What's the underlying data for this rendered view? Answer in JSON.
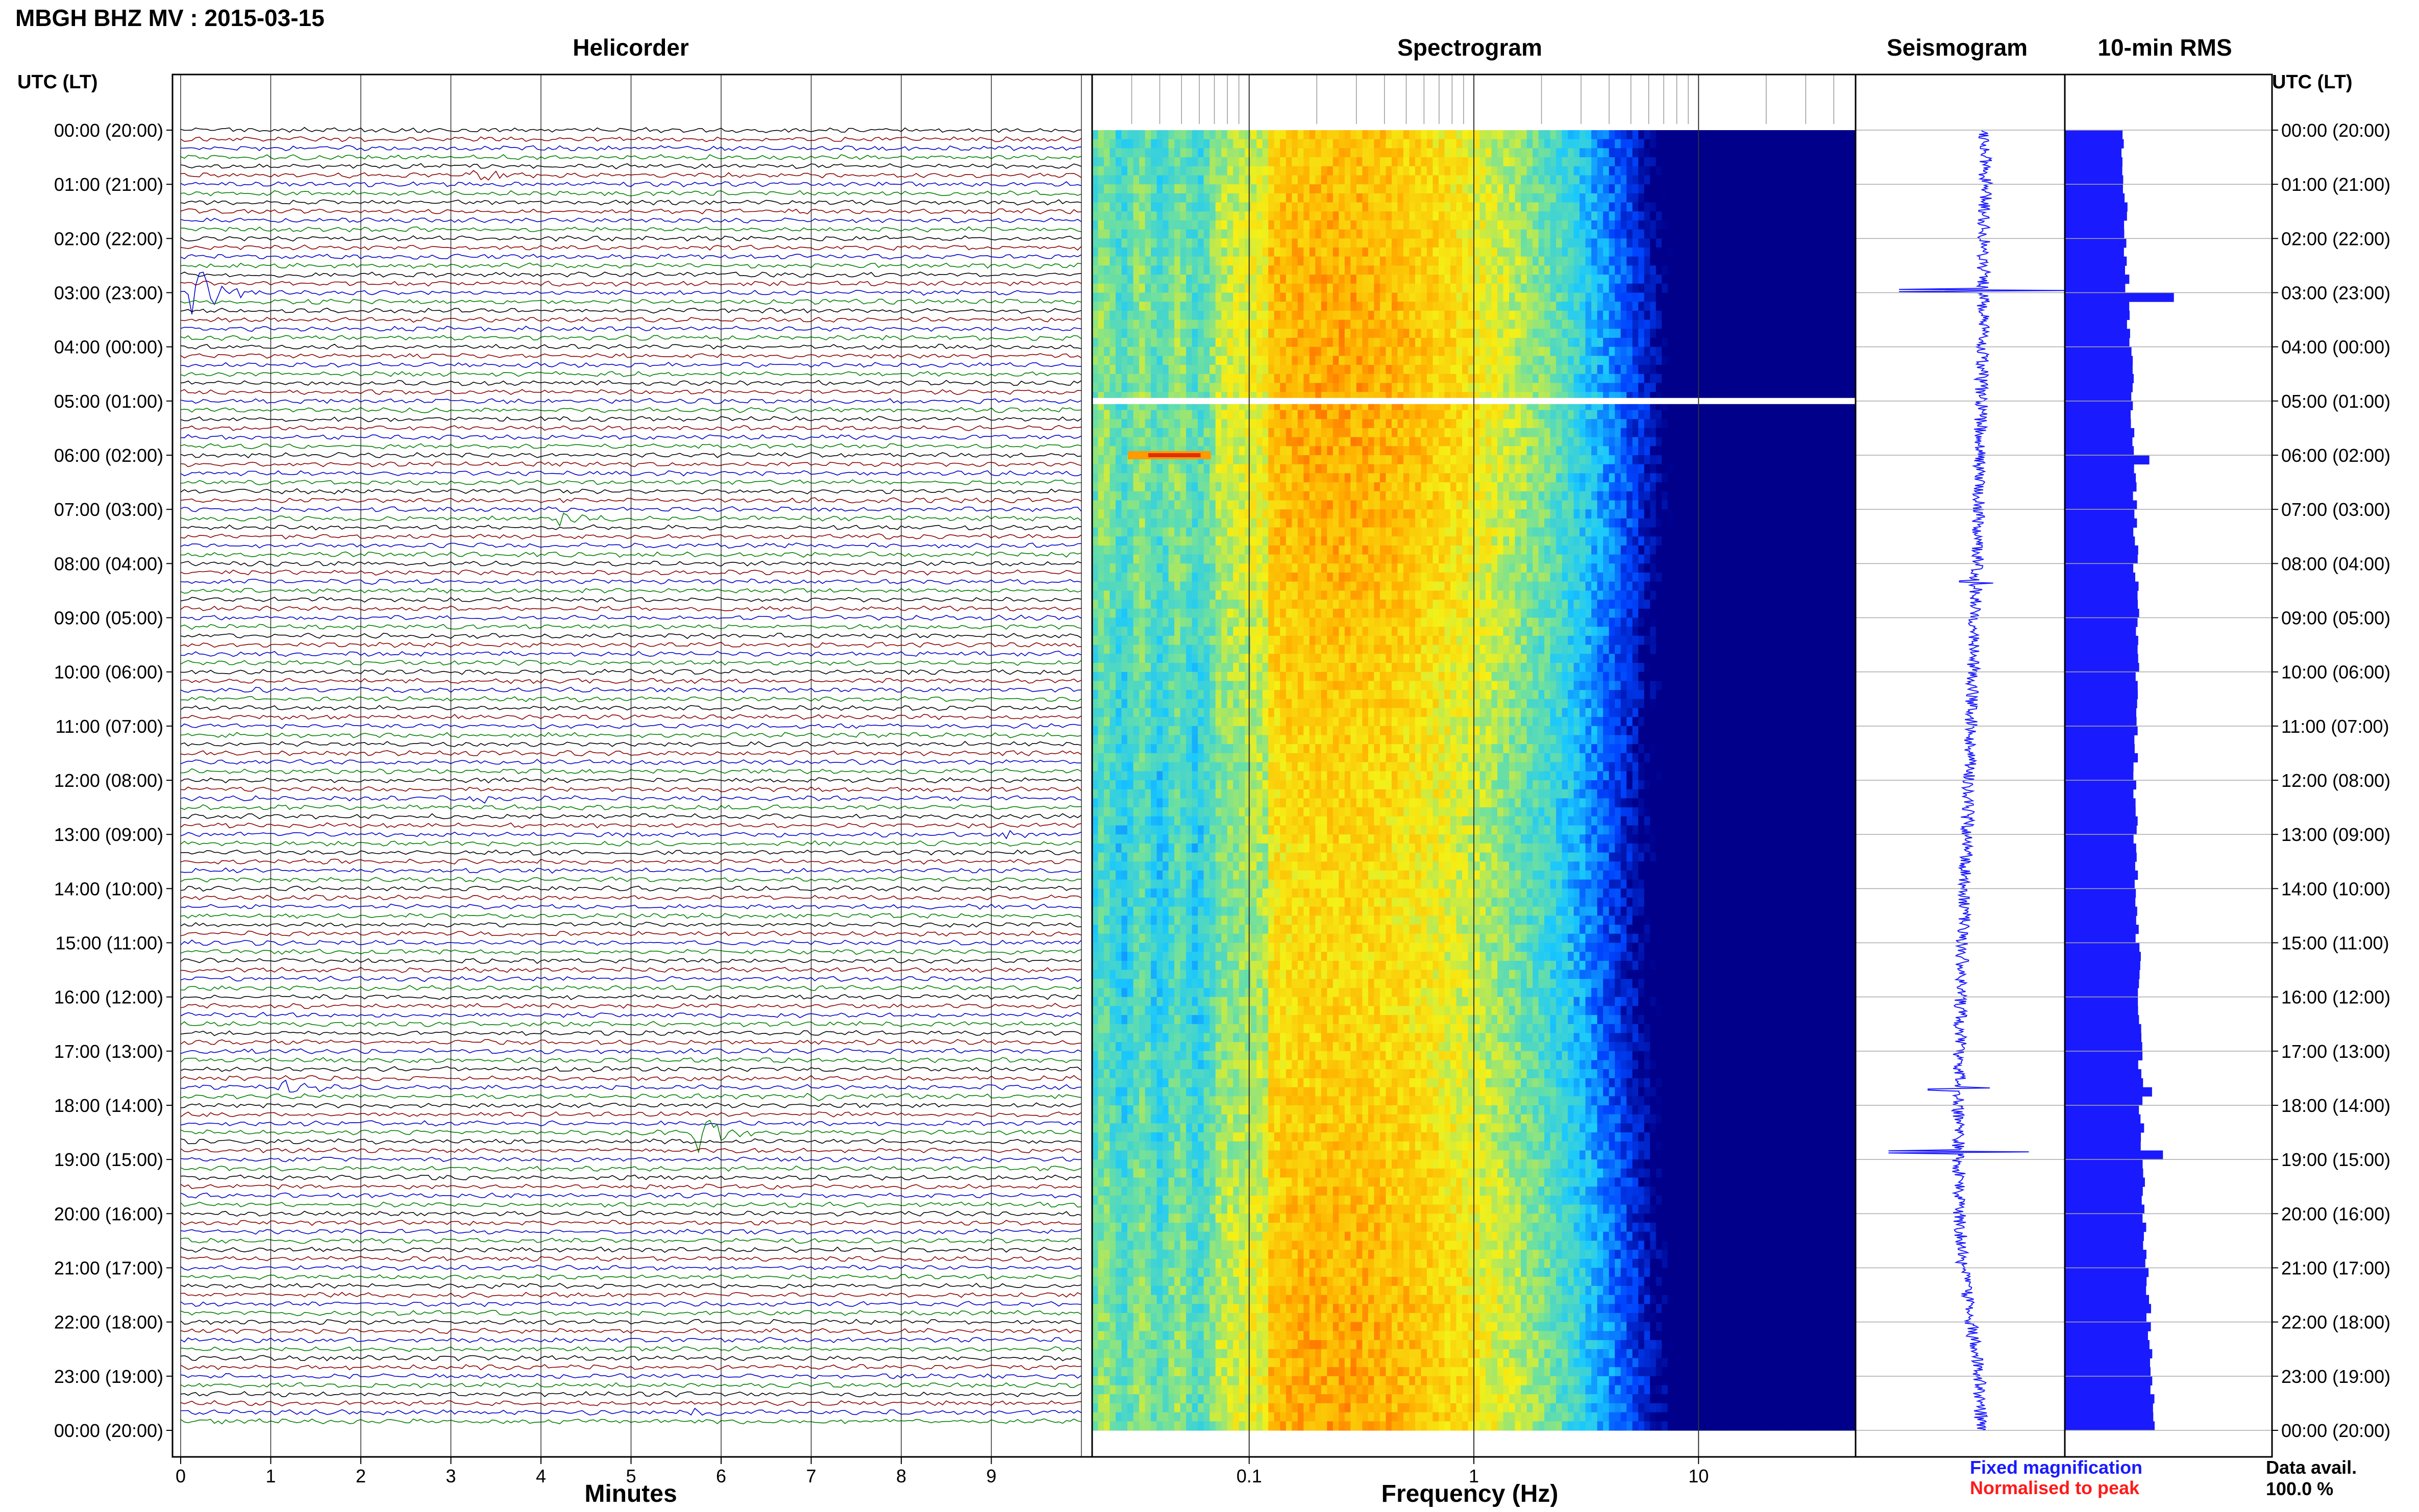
{
  "header": {
    "title": "MBGH BHZ MV : 2015-03-15",
    "time_axis_label": "UTC (LT)"
  },
  "panels": {
    "helicorder": "Helicorder",
    "spectrogram": "Spectrogram",
    "seismogram": "Seismogram",
    "rms": "10-min RMS"
  },
  "axes": {
    "minutes_label": "Minutes",
    "frequency_label": "Frequency (Hz)"
  },
  "legend": {
    "fixed": "Fixed magnification",
    "normalised": "Normalised to peak",
    "fixed_color": "#1a1aff",
    "normalised_color": "#ff1a1a"
  },
  "data_availability": {
    "label": "Data avail.",
    "value": "100.0 %"
  },
  "chart_data": [
    {
      "type": "line",
      "title": "Helicorder",
      "xlabel": "Minutes",
      "x_ticks": [
        "0",
        "1",
        "2",
        "3",
        "4",
        "5",
        "6",
        "7",
        "8",
        "9"
      ],
      "xlim": [
        0,
        10
      ],
      "row_interval_minutes": 10,
      "rows": 144,
      "trace_colors": [
        "#000000",
        "#8b0000",
        "#0000cc",
        "#008000"
      ],
      "y_tick_labels": [
        "00:00 (20:00)",
        "01:00 (21:00)",
        "02:00 (22:00)",
        "03:00 (23:00)",
        "04:00 (00:00)",
        "05:00 (01:00)",
        "06:00 (02:00)",
        "07:00 (03:00)",
        "08:00 (04:00)",
        "09:00 (05:00)",
        "10:00 (06:00)",
        "11:00 (07:00)",
        "12:00 (08:00)",
        "13:00 (09:00)",
        "14:00 (10:00)",
        "15:00 (11:00)",
        "16:00 (12:00)",
        "17:00 (13:00)",
        "18:00 (14:00)",
        "19:00 (15:00)",
        "20:00 (16:00)",
        "21:00 (17:00)",
        "22:00 (18:00)",
        "23:00 (19:00)",
        "00:00 (20:00)"
      ],
      "events": [
        {
          "hour": 2.95,
          "minute": 0.25,
          "amplitude": 3.0
        },
        {
          "hour": 0.85,
          "minute": 3.4,
          "amplitude": 0.7
        },
        {
          "hour": 7.2,
          "minute": 4.35,
          "amplitude": 1.1
        },
        {
          "hour": 12.3,
          "minute": 3.3,
          "amplitude": 0.5
        },
        {
          "hour": 12.95,
          "minute": 9.2,
          "amplitude": 0.7
        },
        {
          "hour": 17.65,
          "minute": 1.2,
          "amplitude": 1.3
        },
        {
          "hour": 17.9,
          "minute": 6.9,
          "amplitude": 0.7
        },
        {
          "hour": 18.55,
          "minute": 5.8,
          "amplitude": 2.5
        },
        {
          "hour": 23.6,
          "minute": 5.7,
          "amplitude": 0.6
        }
      ]
    },
    {
      "type": "heatmap",
      "title": "Spectrogram",
      "xlabel": "Frequency (Hz)",
      "x_scale": "log",
      "x_ticks": [
        "0.1",
        "1",
        "10"
      ],
      "xlim": [
        0.02,
        50
      ],
      "colormap": [
        "#00008b",
        "#0044ff",
        "#19c8ff",
        "#6ee0a0",
        "#f5f016",
        "#ffb000",
        "#ff3000"
      ],
      "peak_frequency_hz": 0.25,
      "notable": [
        {
          "hour": 5.0,
          "feature": "data gap"
        },
        {
          "hour": 6.0,
          "frequency_hz": 0.04,
          "feature": "high energy"
        }
      ]
    },
    {
      "type": "line",
      "title": "Seismogram",
      "offset_by_hour": [
        1.0,
        1.0,
        0.95,
        0.9,
        0.85,
        0.8,
        0.75,
        0.7,
        0.6,
        0.5,
        0.4,
        0.3,
        0.2,
        0.1,
        0.0,
        -0.1,
        -0.2,
        -0.25,
        -0.3,
        -0.3,
        -0.25,
        -0.1,
        0.3,
        0.7,
        0.8
      ],
      "spikes": [
        {
          "hour": 2.95,
          "amplitude": 3.0
        },
        {
          "hour": 8.35,
          "amplitude": 0.6
        },
        {
          "hour": 17.7,
          "amplitude": 1.1
        },
        {
          "hour": 18.85,
          "amplitude": 2.5
        }
      ]
    },
    {
      "type": "bar",
      "title": "10-min RMS",
      "orientation": "horizontal",
      "bins_per_hour": 6,
      "hourly_baseline": [
        1.05,
        1.1,
        1.12,
        1.15,
        1.2,
        1.25,
        1.28,
        1.3,
        1.3,
        1.32,
        1.32,
        1.3,
        1.3,
        1.3,
        1.32,
        1.35,
        1.35,
        1.38,
        1.4,
        1.42,
        1.45,
        1.5,
        1.55,
        1.6,
        1.6
      ],
      "peaks": [
        {
          "hour": 2.95,
          "value": 2.0
        },
        {
          "hour": 5.95,
          "value": 1.55
        },
        {
          "hour": 17.7,
          "value": 1.6
        },
        {
          "hour": 18.85,
          "value": 1.8
        }
      ],
      "xlim": [
        0,
        3.8
      ]
    }
  ]
}
